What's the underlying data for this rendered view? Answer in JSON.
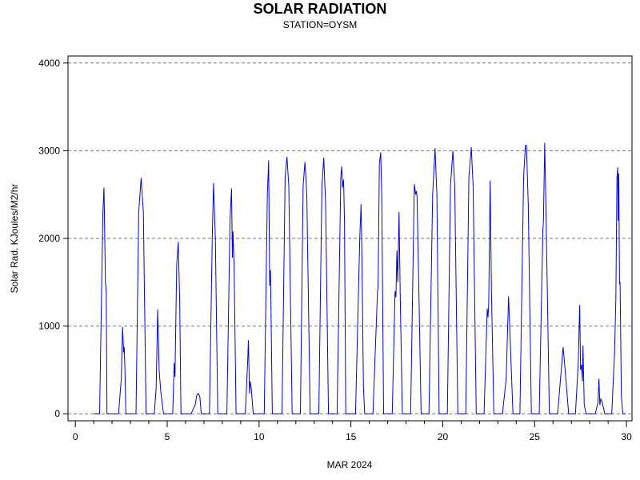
{
  "chart_data": {
    "type": "line",
    "title": "SOLAR RADIATION",
    "subtitle": "STATION=OYSM",
    "xlabel": "MAR 2024",
    "ylabel": "Solar Rad. KJoules/M2/hr",
    "xlim": [
      -0.4,
      30.3
    ],
    "ylim": [
      -80,
      4080
    ],
    "x_ticks": [
      0,
      5,
      10,
      15,
      20,
      25,
      30
    ],
    "y_ticks": [
      0,
      1000,
      2000,
      3000,
      4000
    ],
    "grid": "horizontal dashed at y ticks",
    "series": [
      {
        "color": "#0000ff",
        "days": [
          {
            "day": 1,
            "rise": 1.32,
            "set": 1.72,
            "peaks": [
              [
                1.5,
                2300
              ],
              [
                1.56,
                2580
              ],
              [
                1.64,
                1500
              ],
              [
                1.68,
                1400
              ]
            ]
          },
          {
            "day": 2,
            "rise": 2.35,
            "set": 2.75,
            "peaks": [
              [
                2.5,
                400
              ],
              [
                2.57,
                990
              ],
              [
                2.63,
                700
              ],
              [
                2.66,
                760
              ],
              [
                2.7,
                500
              ]
            ]
          },
          {
            "day": 3,
            "rise": 3.3,
            "set": 3.85,
            "peaks": [
              [
                3.45,
                2300
              ],
              [
                3.58,
                2690
              ],
              [
                3.7,
                2300
              ]
            ]
          },
          {
            "day": 4,
            "rise": 4.3,
            "set": 4.8,
            "peaks": [
              [
                4.4,
                300
              ],
              [
                4.48,
                1190
              ],
              [
                4.56,
                500
              ],
              [
                4.65,
                250
              ]
            ]
          },
          {
            "day": 5,
            "rise": 5.3,
            "set": 5.75,
            "peaks": [
              [
                5.38,
                580
              ],
              [
                5.42,
                420
              ],
              [
                5.52,
                1700
              ],
              [
                5.6,
                1960
              ],
              [
                5.68,
                1300
              ]
            ]
          },
          {
            "day": 6,
            "rise": 6.3,
            "set": 6.85,
            "peaks": [
              [
                6.45,
                70
              ],
              [
                6.52,
                100
              ],
              [
                6.62,
                220
              ],
              [
                6.7,
                230
              ],
              [
                6.78,
                190
              ]
            ]
          },
          {
            "day": 7,
            "rise": 7.3,
            "set": 7.75,
            "peaks": [
              [
                7.45,
                2000
              ],
              [
                7.52,
                2630
              ],
              [
                7.62,
                2000
              ]
            ]
          },
          {
            "day": 8,
            "rise": 8.25,
            "set": 8.75,
            "peaks": [
              [
                8.42,
                2200
              ],
              [
                8.5,
                2570
              ],
              [
                8.55,
                1780
              ],
              [
                8.58,
                2080
              ],
              [
                8.64,
                1700
              ]
            ]
          },
          {
            "day": 9,
            "rise": 9.25,
            "set": 9.68,
            "peaks": [
              [
                9.38,
                600
              ],
              [
                9.42,
                840
              ],
              [
                9.48,
                230
              ],
              [
                9.52,
                370
              ],
              [
                9.58,
                280
              ]
            ]
          },
          {
            "day": 10,
            "rise": 10.28,
            "set": 10.72,
            "peaks": [
              [
                10.45,
                2500
              ],
              [
                10.52,
                2890
              ],
              [
                10.58,
                1460
              ],
              [
                10.62,
                1640
              ]
            ]
          },
          {
            "day": 11,
            "rise": 11.25,
            "set": 11.8,
            "peaks": [
              [
                11.42,
                2700
              ],
              [
                11.52,
                2930
              ],
              [
                11.62,
                2600
              ]
            ]
          },
          {
            "day": 12,
            "rise": 12.25,
            "set": 12.78,
            "peaks": [
              [
                12.4,
                2600
              ],
              [
                12.5,
                2870
              ],
              [
                12.6,
                2500
              ]
            ]
          },
          {
            "day": 13,
            "rise": 13.25,
            "set": 13.78,
            "peaks": [
              [
                13.42,
                2600
              ],
              [
                13.52,
                2920
              ],
              [
                13.62,
                2400
              ]
            ]
          },
          {
            "day": 14,
            "rise": 14.25,
            "set": 14.72,
            "peaks": [
              [
                14.45,
                2700
              ],
              [
                14.5,
                2820
              ],
              [
                14.55,
                2580
              ],
              [
                14.6,
                2670
              ],
              [
                14.65,
                2200
              ]
            ]
          },
          {
            "day": 15,
            "rise": 15.25,
            "set": 15.75,
            "peaks": [
              [
                15.48,
                2000
              ],
              [
                15.55,
                2390
              ],
              [
                15.6,
                1800
              ],
              [
                15.68,
                300
              ]
            ]
          },
          {
            "day": 16,
            "rise": 16.2,
            "set": 16.78,
            "peaks": [
              [
                16.45,
                1400
              ],
              [
                16.48,
                1450
              ],
              [
                16.55,
                2850
              ],
              [
                16.62,
                2980
              ],
              [
                16.68,
                2500
              ]
            ]
          },
          {
            "day": 17,
            "rise": 17.25,
            "set": 17.8,
            "peaks": [
              [
                17.4,
                1400
              ],
              [
                17.45,
                1330
              ],
              [
                17.5,
                1860
              ],
              [
                17.55,
                1500
              ],
              [
                17.62,
                2300
              ],
              [
                17.68,
                1400
              ]
            ]
          },
          {
            "day": 18,
            "rise": 18.25,
            "set": 18.82,
            "peaks": [
              [
                18.45,
                2620
              ],
              [
                18.52,
                2500
              ],
              [
                18.56,
                2540
              ],
              [
                18.6,
                2480
              ],
              [
                18.68,
                1600
              ]
            ]
          },
          {
            "day": 19,
            "rise": 19.25,
            "set": 19.8,
            "peaks": [
              [
                19.45,
                2500
              ],
              [
                19.58,
                3030
              ],
              [
                19.68,
                2500
              ]
            ]
          },
          {
            "day": 20,
            "rise": 20.25,
            "set": 20.82,
            "peaks": [
              [
                20.42,
                2600
              ],
              [
                20.55,
                3000
              ],
              [
                20.65,
                2600
              ]
            ]
          },
          {
            "day": 21,
            "rise": 21.25,
            "set": 21.82,
            "peaks": [
              [
                21.42,
                2700
              ],
              [
                21.55,
                3040
              ],
              [
                21.65,
                2600
              ]
            ]
          },
          {
            "day": 22,
            "rise": 22.25,
            "set": 22.78,
            "peaks": [
              [
                22.42,
                1200
              ],
              [
                22.46,
                1100
              ],
              [
                22.5,
                1250
              ],
              [
                22.58,
                2660
              ],
              [
                22.65,
                1400
              ]
            ]
          },
          {
            "day": 23,
            "rise": 23.25,
            "set": 23.82,
            "peaks": [
              [
                23.45,
                400
              ],
              [
                23.52,
                900
              ],
              [
                23.58,
                1340
              ],
              [
                23.66,
                900
              ]
            ]
          },
          {
            "day": 24,
            "rise": 24.2,
            "set": 24.82,
            "peaks": [
              [
                24.4,
                2700
              ],
              [
                24.5,
                3060
              ],
              [
                24.55,
                3060
              ],
              [
                24.65,
                2400
              ]
            ]
          },
          {
            "day": 25,
            "rise": 25.25,
            "set": 25.8,
            "peaks": [
              [
                25.45,
                2100
              ],
              [
                25.48,
                2200
              ],
              [
                25.55,
                3090
              ],
              [
                25.62,
                2300
              ]
            ]
          },
          {
            "day": 26,
            "rise": 26.25,
            "set": 26.85,
            "peaks": [
              [
                26.45,
                500
              ],
              [
                26.55,
                760
              ],
              [
                26.62,
                600
              ],
              [
                26.7,
                400
              ]
            ]
          },
          {
            "day": 27,
            "rise": 27.22,
            "set": 27.8,
            "peaks": [
              [
                27.38,
                600
              ],
              [
                27.45,
                1240
              ],
              [
                27.5,
                500
              ],
              [
                27.55,
                560
              ],
              [
                27.6,
                370
              ],
              [
                27.63,
                780
              ],
              [
                27.7,
                100
              ]
            ]
          },
          {
            "day": 28,
            "rise": 28.3,
            "set": 28.82,
            "peaks": [
              [
                28.45,
                130
              ],
              [
                28.5,
                400
              ],
              [
                28.55,
                100
              ],
              [
                28.6,
                170
              ],
              [
                28.68,
                130
              ]
            ]
          },
          {
            "day": 29,
            "rise": 29.2,
            "set": 29.8,
            "peaks": [
              [
                29.35,
                700
              ],
              [
                29.42,
                1300
              ],
              [
                29.48,
                2700
              ],
              [
                29.52,
                2810
              ],
              [
                29.55,
                2200
              ],
              [
                29.58,
                2740
              ],
              [
                29.62,
                1480
              ],
              [
                29.65,
                1500
              ],
              [
                29.72,
                200
              ]
            ]
          }
        ]
      }
    ]
  }
}
